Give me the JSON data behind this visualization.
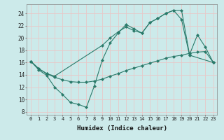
{
  "xlabel": "Humidex (Indice chaleur)",
  "bg_color": "#cceaea",
  "grid_color": "#e8c8c8",
  "line_color": "#2a7a6a",
  "xlim": [
    -0.5,
    23.5
  ],
  "ylim": [
    7.5,
    25.5
  ],
  "yticks": [
    8,
    10,
    12,
    14,
    16,
    18,
    20,
    22,
    24
  ],
  "xticks": [
    0,
    1,
    2,
    3,
    4,
    5,
    6,
    7,
    8,
    9,
    10,
    11,
    12,
    13,
    14,
    15,
    16,
    17,
    18,
    19,
    20,
    21,
    22,
    23
  ],
  "series1_x": [
    0,
    1,
    2,
    3,
    4,
    5,
    6,
    7,
    8,
    9,
    10,
    11,
    12,
    13,
    14,
    15,
    16,
    17,
    18,
    19,
    20,
    23
  ],
  "series1_y": [
    16.2,
    14.8,
    13.9,
    12.0,
    10.8,
    9.5,
    9.2,
    8.7,
    12.2,
    16.4,
    19.2,
    20.8,
    22.2,
    21.5,
    20.8,
    22.5,
    23.2,
    24.0,
    24.5,
    23.0,
    17.2,
    16.0
  ],
  "series2_x": [
    0,
    1,
    2,
    3,
    4,
    5,
    6,
    7,
    8,
    9,
    10,
    11,
    12,
    13,
    14,
    15,
    16,
    17,
    18,
    19,
    20,
    21,
    22,
    23
  ],
  "series2_y": [
    16.2,
    15.0,
    14.2,
    13.6,
    13.2,
    12.9,
    12.8,
    12.8,
    13.0,
    13.3,
    13.8,
    14.2,
    14.7,
    15.1,
    15.5,
    15.9,
    16.3,
    16.7,
    17.0,
    17.2,
    17.5,
    17.7,
    17.8,
    16.0
  ],
  "series3_x": [
    0,
    1,
    2,
    3,
    9,
    10,
    11,
    12,
    13,
    14,
    15,
    16,
    17,
    18,
    19,
    20,
    21,
    22,
    23
  ],
  "series3_y": [
    16.2,
    15.0,
    14.2,
    13.8,
    18.8,
    20.0,
    21.0,
    21.8,
    21.2,
    20.8,
    22.5,
    23.2,
    24.0,
    24.5,
    24.5,
    17.3,
    20.5,
    18.5,
    16.0
  ]
}
